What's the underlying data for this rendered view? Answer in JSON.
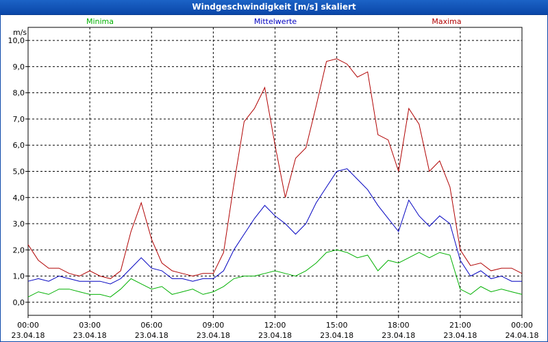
{
  "window": {
    "title": "Windgeschwindigkeit [m/s] skaliert"
  },
  "chart_data": {
    "type": "line",
    "ylabel": "m/s",
    "ylim": [
      -0.5,
      10.5
    ],
    "yticks": [
      "0,0",
      "1,0",
      "2,0",
      "3,0",
      "4,0",
      "5,0",
      "6,0",
      "7,0",
      "8,0",
      "9,0",
      "10,0"
    ],
    "xticks": [
      {
        "time": "00:00",
        "date": "23.04.18"
      },
      {
        "time": "03:00",
        "date": "23.04.18"
      },
      {
        "time": "06:00",
        "date": "23.04.18"
      },
      {
        "time": "09:00",
        "date": "23.04.18"
      },
      {
        "time": "12:00",
        "date": "23.04.18"
      },
      {
        "time": "15:00",
        "date": "23.04.18"
      },
      {
        "time": "18:00",
        "date": "23.04.18"
      },
      {
        "time": "21:00",
        "date": "23.04.18"
      },
      {
        "time": "00:00",
        "date": "24.04.18"
      }
    ],
    "x_hours": [
      0,
      0.5,
      1,
      1.5,
      2,
      2.5,
      3,
      3.5,
      4,
      4.5,
      5,
      5.5,
      6,
      6.5,
      7,
      7.5,
      8,
      8.5,
      9,
      9.5,
      10,
      10.5,
      11,
      11.5,
      12,
      12.5,
      13,
      13.5,
      14,
      14.5,
      15,
      15.5,
      16,
      16.5,
      17,
      17.5,
      18,
      18.5,
      19,
      19.5,
      20,
      20.5,
      21,
      21.5,
      22,
      22.5,
      23,
      23.5,
      24
    ],
    "grid": true,
    "series": [
      {
        "name": "Minima",
        "color": "#00b000",
        "values": [
          0.2,
          0.4,
          0.3,
          0.5,
          0.5,
          0.4,
          0.3,
          0.3,
          0.2,
          0.5,
          0.9,
          0.7,
          0.5,
          0.6,
          0.3,
          0.4,
          0.5,
          0.3,
          0.4,
          0.6,
          0.9,
          1.0,
          1.0,
          1.1,
          1.2,
          1.1,
          1.0,
          1.2,
          1.5,
          1.9,
          2.0,
          1.9,
          1.7,
          1.8,
          1.2,
          1.6,
          1.5,
          1.7,
          1.9,
          1.7,
          1.9,
          1.8,
          0.5,
          0.3,
          0.6,
          0.4,
          0.5,
          0.4,
          0.3
        ]
      },
      {
        "name": "Mittelwerte",
        "color": "#0000c0",
        "values": [
          0.8,
          0.9,
          0.8,
          1.0,
          0.9,
          0.8,
          0.8,
          0.8,
          0.7,
          0.9,
          1.3,
          1.7,
          1.3,
          1.2,
          0.9,
          0.9,
          0.8,
          0.9,
          0.9,
          1.2,
          2.0,
          2.6,
          3.2,
          3.7,
          3.3,
          3.0,
          2.6,
          3.0,
          3.8,
          4.4,
          5.0,
          5.1,
          4.7,
          4.3,
          3.7,
          3.2,
          2.7,
          3.9,
          3.3,
          2.9,
          3.3,
          3.0,
          1.6,
          1.0,
          1.2,
          0.9,
          1.0,
          0.8,
          0.8
        ]
      },
      {
        "name": "Maxima",
        "color": "#b00000",
        "values": [
          2.2,
          1.6,
          1.3,
          1.3,
          1.1,
          1.0,
          1.2,
          1.0,
          0.9,
          1.2,
          2.7,
          3.8,
          2.4,
          1.5,
          1.2,
          1.1,
          1.0,
          1.1,
          1.1,
          1.9,
          4.5,
          6.9,
          7.4,
          8.2,
          6.0,
          4.0,
          5.5,
          5.9,
          7.5,
          9.2,
          9.3,
          9.1,
          8.6,
          8.8,
          6.4,
          6.2,
          5.0,
          7.4,
          6.8,
          5.0,
          5.4,
          4.4,
          2.0,
          1.4,
          1.5,
          1.2,
          1.3,
          1.3,
          1.1
        ]
      }
    ]
  }
}
